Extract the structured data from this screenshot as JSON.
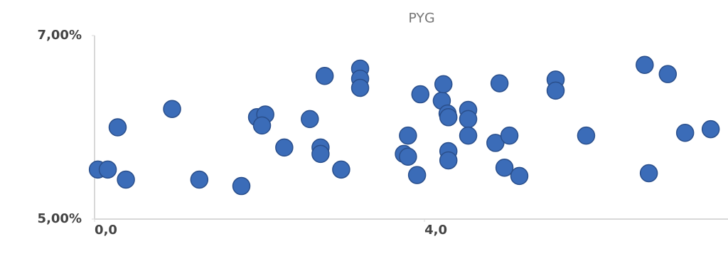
{
  "chart_data": {
    "type": "scatter",
    "title": "PYG",
    "color": "#3b6cb8",
    "x": [
      0.04,
      0.16,
      0.38,
      0.28,
      0.94,
      1.27,
      1.78,
      1.97,
      2.07,
      2.03,
      2.3,
      2.61,
      2.74,
      2.74,
      2.99,
      2.79,
      3.22,
      3.22,
      3.22,
      3.75,
      3.8,
      3.8,
      3.91,
      3.95,
      4.21,
      4.23,
      4.28,
      4.29,
      4.29,
      4.29,
      4.53,
      4.53,
      4.53,
      4.86,
      4.91,
      4.97,
      5.03,
      5.15,
      5.59,
      5.59,
      5.96,
      6.67,
      6.72,
      6.95,
      7.16,
      7.47
    ],
    "values": [
      5.54,
      5.54,
      5.43,
      6.0,
      6.2,
      5.43,
      5.36,
      6.11,
      6.14,
      6.02,
      5.78,
      6.09,
      5.78,
      5.71,
      5.54,
      6.56,
      6.64,
      6.53,
      6.43,
      5.71,
      5.68,
      5.91,
      5.48,
      6.36,
      6.29,
      6.47,
      6.15,
      6.11,
      5.74,
      5.64,
      6.19,
      6.09,
      5.91,
      5.83,
      6.48,
      5.56,
      5.91,
      5.47,
      6.52,
      6.4,
      5.91,
      6.68,
      5.5,
      6.58,
      5.94,
      5.98
    ],
    "xlim": [
      0,
      7.68
    ],
    "ylim": [
      5,
      7
    ],
    "xticks": [
      {
        "value": 0,
        "label": "0,0"
      },
      {
        "value": 4,
        "label": "4,0"
      }
    ],
    "yticks": [
      {
        "value": 5,
        "label": "5,00%"
      },
      {
        "value": 7,
        "label": "7,00%"
      }
    ]
  }
}
